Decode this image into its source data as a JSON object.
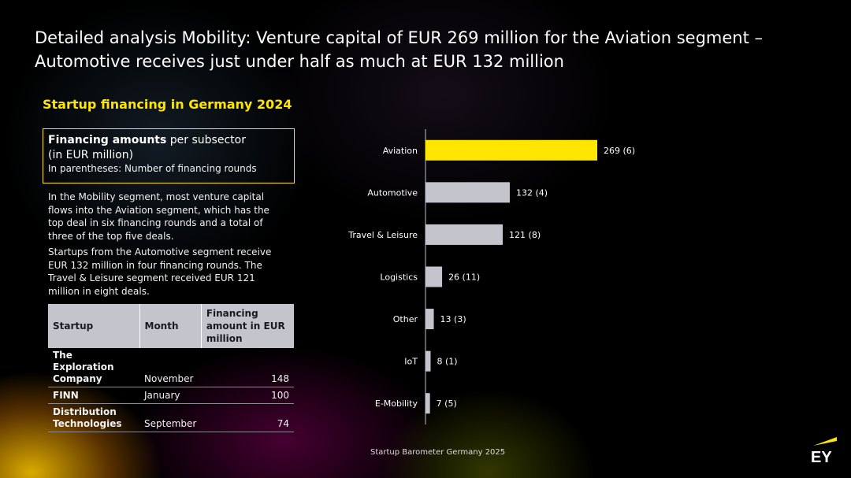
{
  "title": "Detailed analysis Mobility: Venture capital of EUR 269 million for the Aviation segment – Automotive receives just under half as much at EUR 132 million",
  "subtitle": "Startup financing in Germany 2024",
  "info_box": {
    "bold": "Financing amounts",
    "rest": " per subsector",
    "line2": "(in EUR million)",
    "line3": "In parentheses: Number of financing rounds"
  },
  "paragraphs": [
    "In the Mobility segment, most venture capital flows into the Aviation segment, which has the top deal in six financing rounds and a total of three of the top five deals.",
    "Startups from the Automotive segment receive EUR 132 million in four financing rounds. The Travel & Leisure segment received EUR 121 million in eight deals."
  ],
  "table": {
    "headers": [
      "Startup",
      "Month",
      "Financing amount in EUR million"
    ],
    "rows": [
      [
        "The Exploration Company",
        "November",
        "148"
      ],
      [
        "FINN",
        "January",
        "100"
      ],
      [
        "Distribution Technologies",
        "September",
        "74"
      ]
    ]
  },
  "chart_data": {
    "type": "bar",
    "orientation": "horizontal",
    "categories": [
      "Aviation",
      "Automotive",
      "Travel & Leisure",
      "Logistics",
      "Other",
      "IoT",
      "E-Mobility"
    ],
    "values": [
      269,
      132,
      121,
      26,
      13,
      8,
      7
    ],
    "rounds": [
      6,
      4,
      8,
      11,
      3,
      1,
      5
    ],
    "labels": [
      "269 (6)",
      "132 (4)",
      "121 (8)",
      "26 (11)",
      "13 (3)",
      "8 (1)",
      "7 (5)"
    ],
    "highlight_color": "#ffe600",
    "bar_color": "#c4c4cd",
    "xlim": [
      0,
      269
    ],
    "grid": false
  },
  "footer": "Startup Barometer Germany 2025",
  "logo": {
    "text": "EY",
    "color": "#ffe600"
  }
}
